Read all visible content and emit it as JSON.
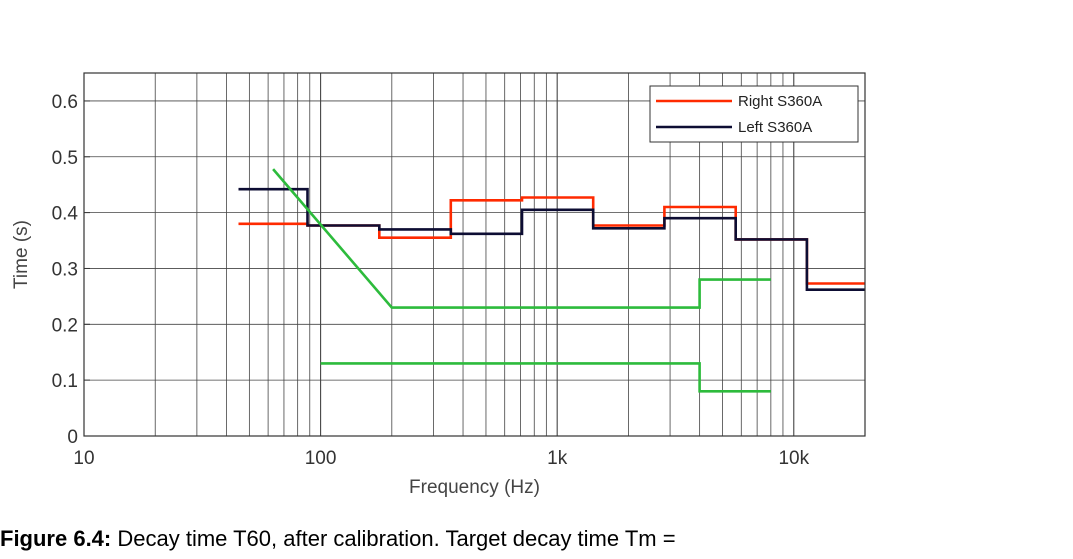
{
  "chart_data": {
    "type": "line",
    "xlabel": "Frequency (Hz)",
    "ylabel": "Time (s)",
    "x_scale": "log",
    "xlim": [
      10,
      20000
    ],
    "ylim": [
      0,
      0.65
    ],
    "x_ticks": [
      {
        "value": 10,
        "label": "10"
      },
      {
        "value": 100,
        "label": "100"
      },
      {
        "value": 1000,
        "label": "1k"
      },
      {
        "value": 10000,
        "label": "10k"
      }
    ],
    "y_ticks": [
      {
        "value": 0,
        "label": "0"
      },
      {
        "value": 0.1,
        "label": "0.1"
      },
      {
        "value": 0.2,
        "label": "0.2"
      },
      {
        "value": 0.3,
        "label": "0.3"
      },
      {
        "value": 0.4,
        "label": "0.4"
      },
      {
        "value": 0.5,
        "label": "0.5"
      },
      {
        "value": 0.6,
        "label": "0.6"
      }
    ],
    "grid": true,
    "legend_position": "top-right",
    "series": [
      {
        "name": "Right S360A",
        "color": "#ff2a00",
        "points": [
          [
            45,
            0.38
          ],
          [
            88,
            0.38
          ],
          [
            88,
            0.377
          ],
          [
            177,
            0.377
          ],
          [
            177,
            0.355
          ],
          [
            355,
            0.355
          ],
          [
            355,
            0.422
          ],
          [
            710,
            0.422
          ],
          [
            710,
            0.427
          ],
          [
            1420,
            0.427
          ],
          [
            1420,
            0.377
          ],
          [
            2840,
            0.377
          ],
          [
            2840,
            0.41
          ],
          [
            5680,
            0.41
          ],
          [
            5680,
            0.352
          ],
          [
            11360,
            0.352
          ],
          [
            11360,
            0.273
          ],
          [
            20000,
            0.273
          ]
        ]
      },
      {
        "name": "Left S360A",
        "color": "#0d0d33",
        "points": [
          [
            45,
            0.442
          ],
          [
            88,
            0.442
          ],
          [
            88,
            0.377
          ],
          [
            177,
            0.377
          ],
          [
            177,
            0.37
          ],
          [
            355,
            0.37
          ],
          [
            355,
            0.362
          ],
          [
            710,
            0.362
          ],
          [
            710,
            0.405
          ],
          [
            1420,
            0.405
          ],
          [
            1420,
            0.372
          ],
          [
            2840,
            0.372
          ],
          [
            2840,
            0.39
          ],
          [
            5680,
            0.39
          ],
          [
            5680,
            0.352
          ],
          [
            11360,
            0.352
          ],
          [
            11360,
            0.262
          ],
          [
            20000,
            0.262
          ]
        ]
      },
      {
        "color": "#2dbb3c",
        "points": [
          [
            63,
            0.478
          ],
          [
            200,
            0.23
          ],
          [
            4000,
            0.23
          ],
          [
            4000,
            0.28
          ],
          [
            8000,
            0.28
          ]
        ]
      },
      {
        "color": "#2dbb3c",
        "points": [
          [
            100,
            0.13
          ],
          [
            4000,
            0.13
          ],
          [
            4000,
            0.08
          ],
          [
            8000,
            0.08
          ]
        ]
      }
    ]
  },
  "caption": {
    "bold": "Figure 6.4:",
    "text": " Decay time T60, after calibration. Target decay time Tm ="
  }
}
